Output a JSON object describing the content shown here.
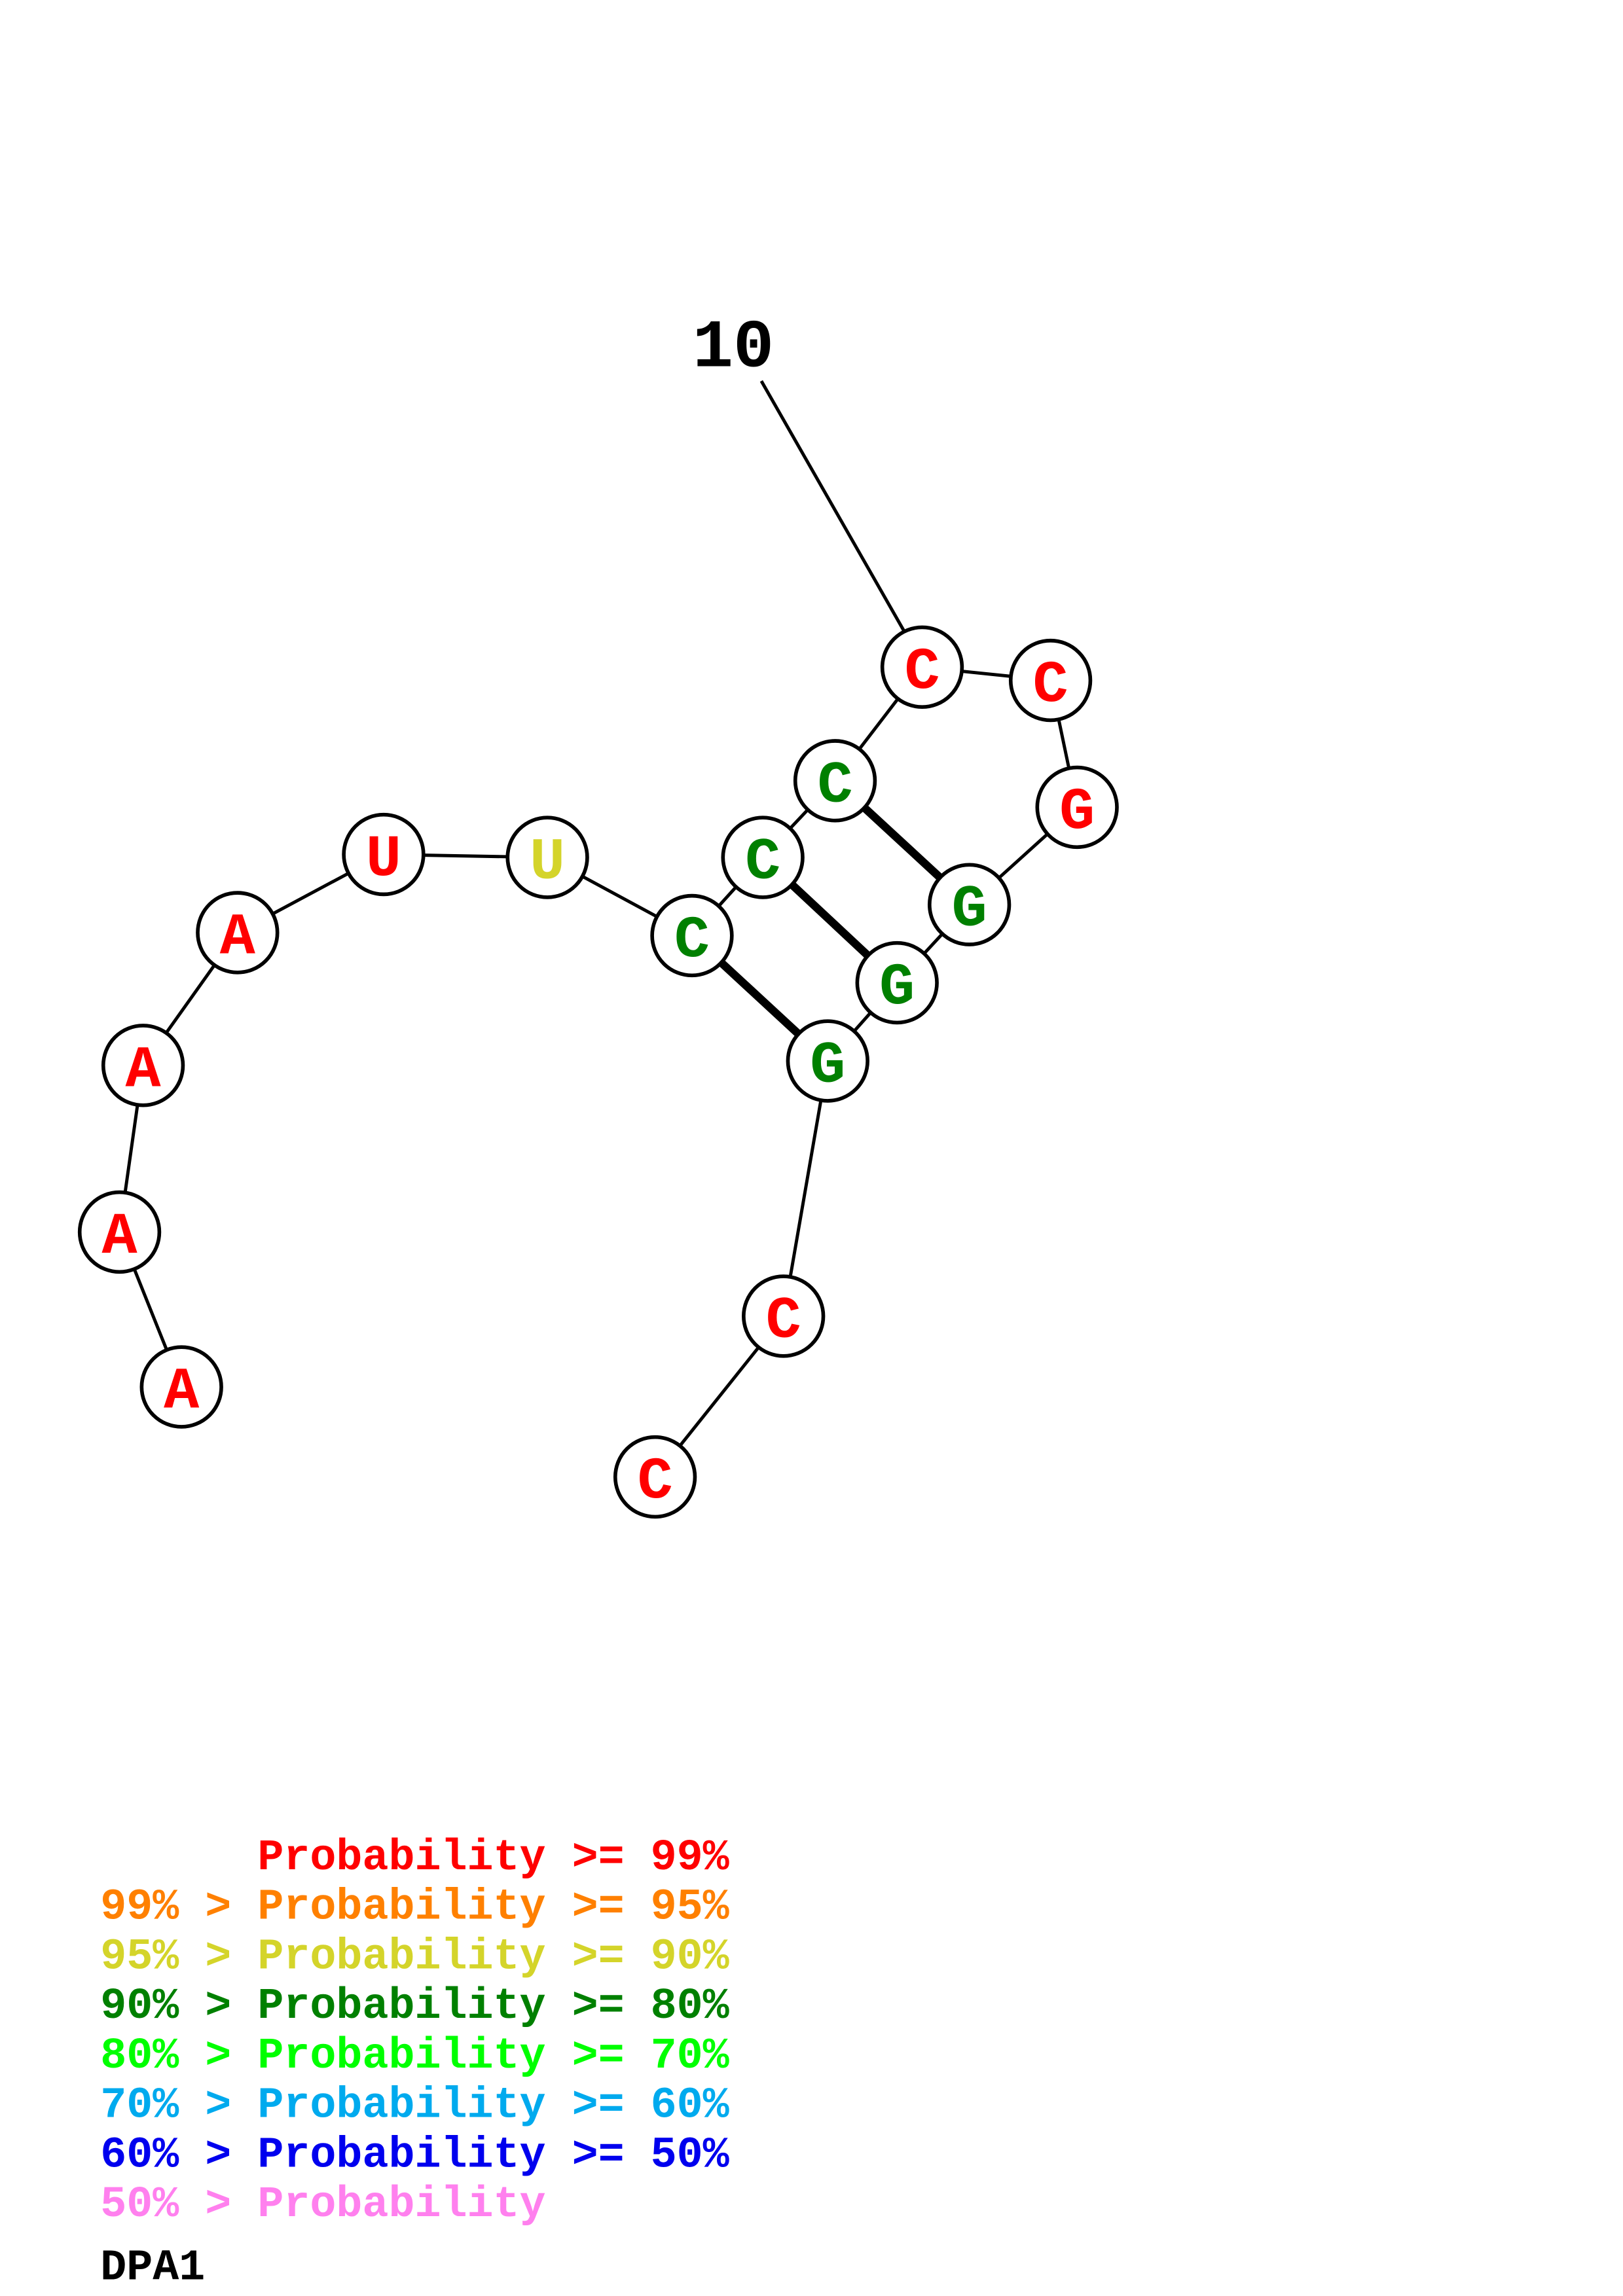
{
  "title": "DPA1",
  "sequence": [
    "A",
    "A",
    "A",
    "A",
    "U",
    "U",
    "C",
    "C",
    "C",
    "C",
    "C",
    "G",
    "G",
    "G",
    "G",
    "C",
    "C"
  ],
  "nucleotide_probability_class": [
    "99",
    "99",
    "99",
    "99",
    "99",
    "90",
    "80",
    "80",
    "80",
    "99",
    "99",
    "99",
    "80",
    "80",
    "80",
    "99",
    "99"
  ],
  "base_pairs": [
    [
      7,
      15
    ],
    [
      8,
      14
    ],
    [
      9,
      13
    ]
  ],
  "position_labels": [
    {
      "index": 10,
      "text": "10"
    }
  ],
  "legend": [
    {
      "text": "      Probability >= 99%",
      "color": "#ff0000",
      "class": "99"
    },
    {
      "text": "99% > Probability >= 95%",
      "color": "#ff8000",
      "class": "95"
    },
    {
      "text": "95% > Probability >= 90%",
      "color": "#d4d42a",
      "class": "90"
    },
    {
      "text": "90% > Probability >= 80%",
      "color": "#008000",
      "class": "80"
    },
    {
      "text": "80% > Probability >= 70%",
      "color": "#00ff00",
      "class": "70"
    },
    {
      "text": "70% > Probability >= 60%",
      "color": "#00aaee",
      "class": "60"
    },
    {
      "text": "60% > Probability >= 50%",
      "color": "#0000ee",
      "class": "50"
    },
    {
      "text": "50% > Probability",
      "color": "#ff80ee",
      "class": "0"
    }
  ]
}
